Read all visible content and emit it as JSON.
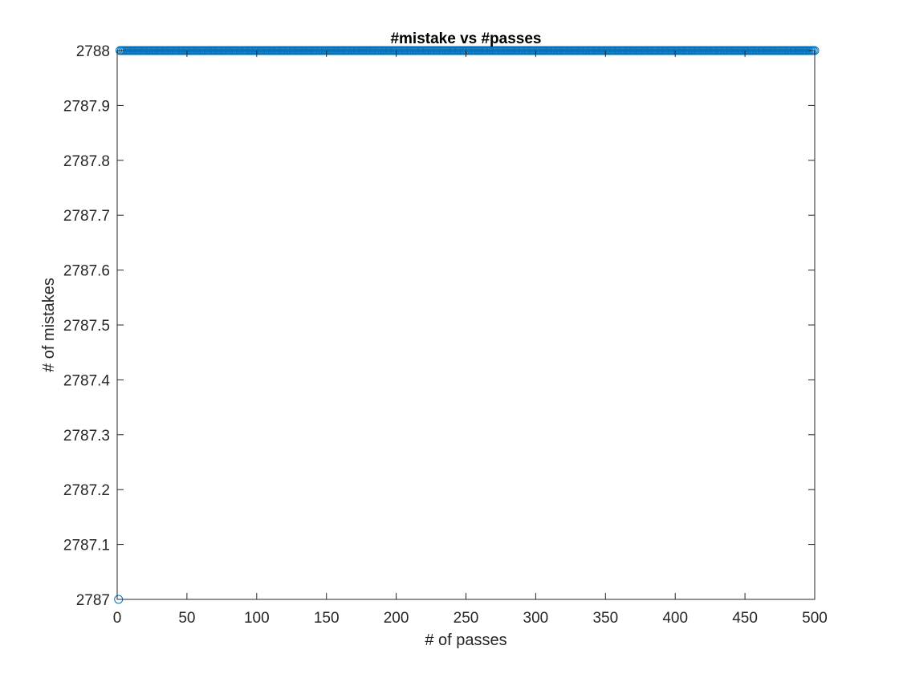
{
  "chart_data": {
    "type": "scatter",
    "title": "#mistake vs #passes",
    "xlabel": "# of passes",
    "ylabel": "# of mistakes",
    "xlim": [
      0,
      500
    ],
    "ylim": [
      2787,
      2788
    ],
    "xticks": [
      0,
      50,
      100,
      150,
      200,
      250,
      300,
      350,
      400,
      450,
      500
    ],
    "yticks": [
      2787,
      2787.1,
      2787.2,
      2787.3,
      2787.4,
      2787.5,
      2787.6,
      2787.7,
      2787.8,
      2787.9,
      2788
    ],
    "xtick_labels": [
      "0",
      "50",
      "100",
      "150",
      "200",
      "250",
      "300",
      "350",
      "400",
      "450",
      "500"
    ],
    "ytick_labels": [
      "2787",
      "2787.1",
      "2787.2",
      "2787.3",
      "2787.4",
      "2787.5",
      "2787.6",
      "2787.7",
      "2787.8",
      "2787.9",
      "2788"
    ],
    "grid": false,
    "box": true,
    "marker": "circle-open",
    "marker_color": "#0072bd",
    "series": [
      {
        "points_description": "x = 1..500 (one per pass); first point y = 2787, remaining points y = 2788",
        "x_start": 1,
        "x_end": 500,
        "x_step": 1,
        "first_value": 2787,
        "rest_value": 2788
      }
    ]
  }
}
